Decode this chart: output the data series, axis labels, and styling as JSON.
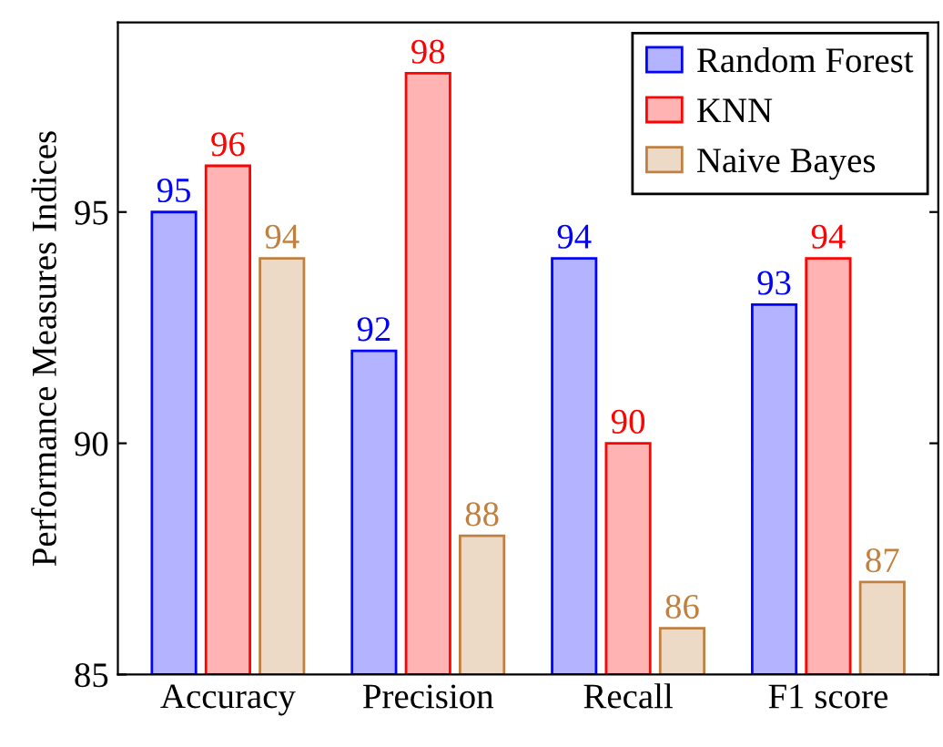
{
  "chart_data": {
    "type": "bar",
    "ylabel": "Performance Measures Indices",
    "categories": [
      "Accuracy",
      "Precision",
      "Recall",
      "F1 score"
    ],
    "series": [
      {
        "name": "Random Forest",
        "color": "#b3b3ff",
        "values": [
          95,
          92,
          94,
          93
        ]
      },
      {
        "name": "KNN",
        "color": "#ffb3b3",
        "values": [
          96,
          98,
          90,
          94
        ]
      },
      {
        "name": "Naive Bayes",
        "color": "#ecd9c6",
        "values": [
          94,
          88,
          86,
          87
        ]
      }
    ],
    "ylim": [
      85,
      99.1
    ],
    "yticks": [
      85,
      90,
      95
    ],
    "grid": false,
    "legend": "top right",
    "data_labels": true
  }
}
